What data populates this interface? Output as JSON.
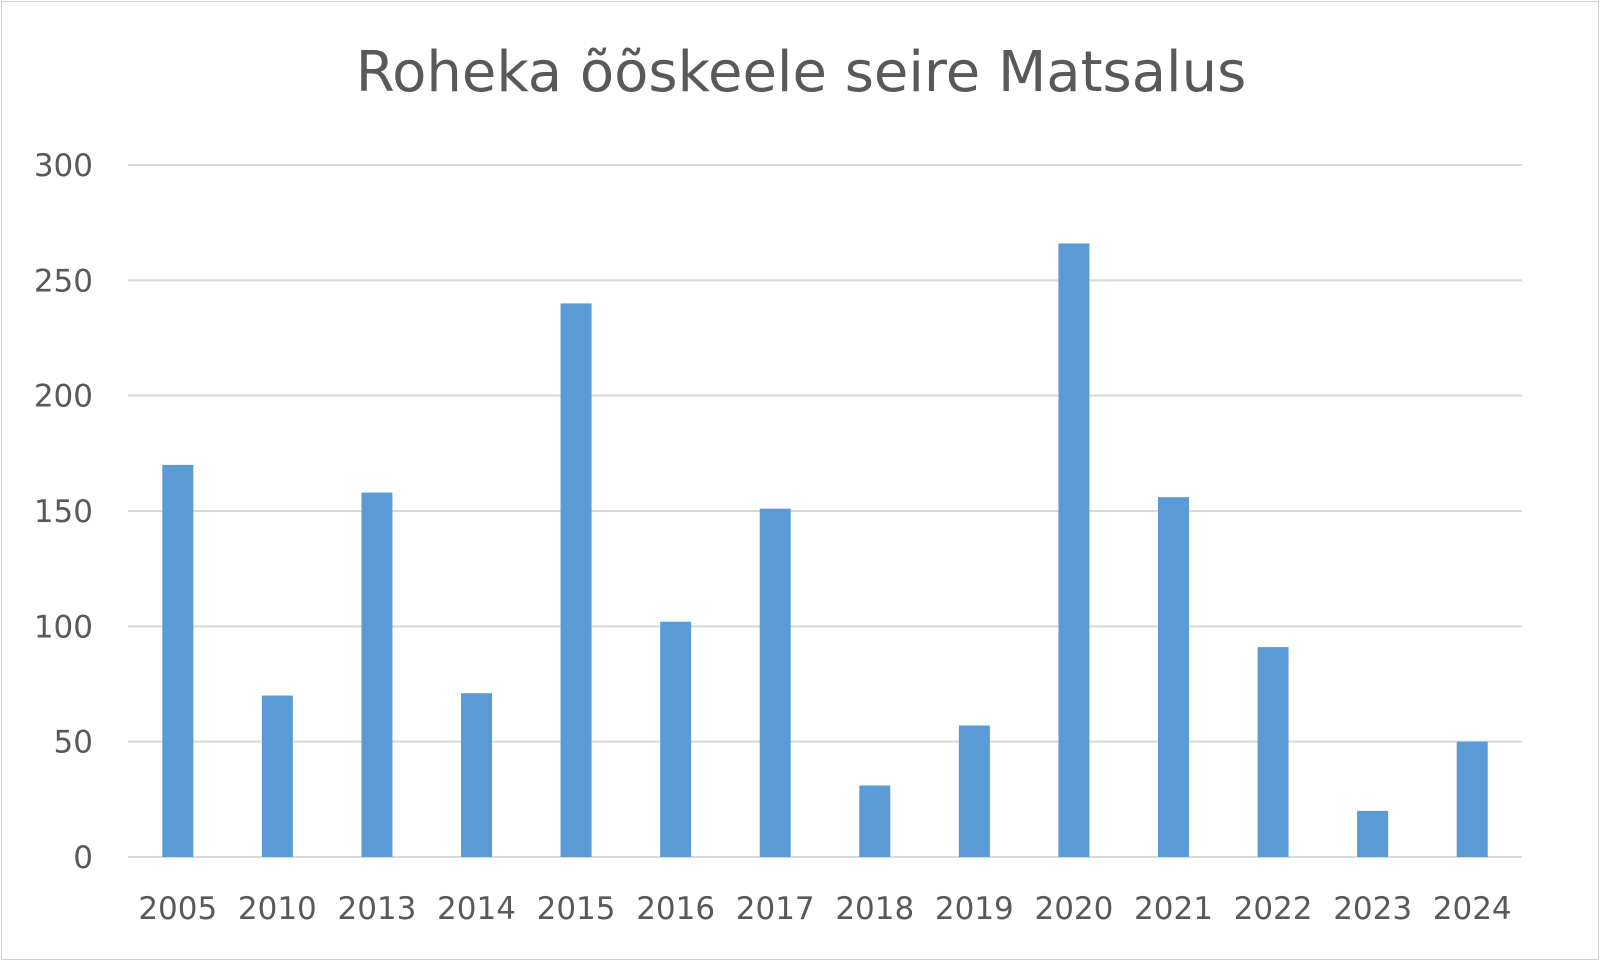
{
  "chart_data": {
    "type": "bar",
    "title": "Roheka õõskeele seire Matsalus",
    "xlabel": "",
    "ylabel": "",
    "categories": [
      "2005",
      "2010",
      "2013",
      "2014",
      "2015",
      "2016",
      "2017",
      "2018",
      "2019",
      "2020",
      "2021",
      "2022",
      "2023",
      "2024"
    ],
    "values": [
      170,
      70,
      158,
      71,
      240,
      102,
      151,
      31,
      57,
      266,
      156,
      91,
      20,
      50
    ],
    "ylim": [
      0,
      300
    ],
    "yticks": [
      "0",
      "50",
      "100",
      "150",
      "200",
      "250",
      "300"
    ],
    "grid": true,
    "legend": "none",
    "colors": {
      "bar": "#5b9bd5",
      "grid": "#d9d9d9",
      "text": "#595959"
    }
  }
}
